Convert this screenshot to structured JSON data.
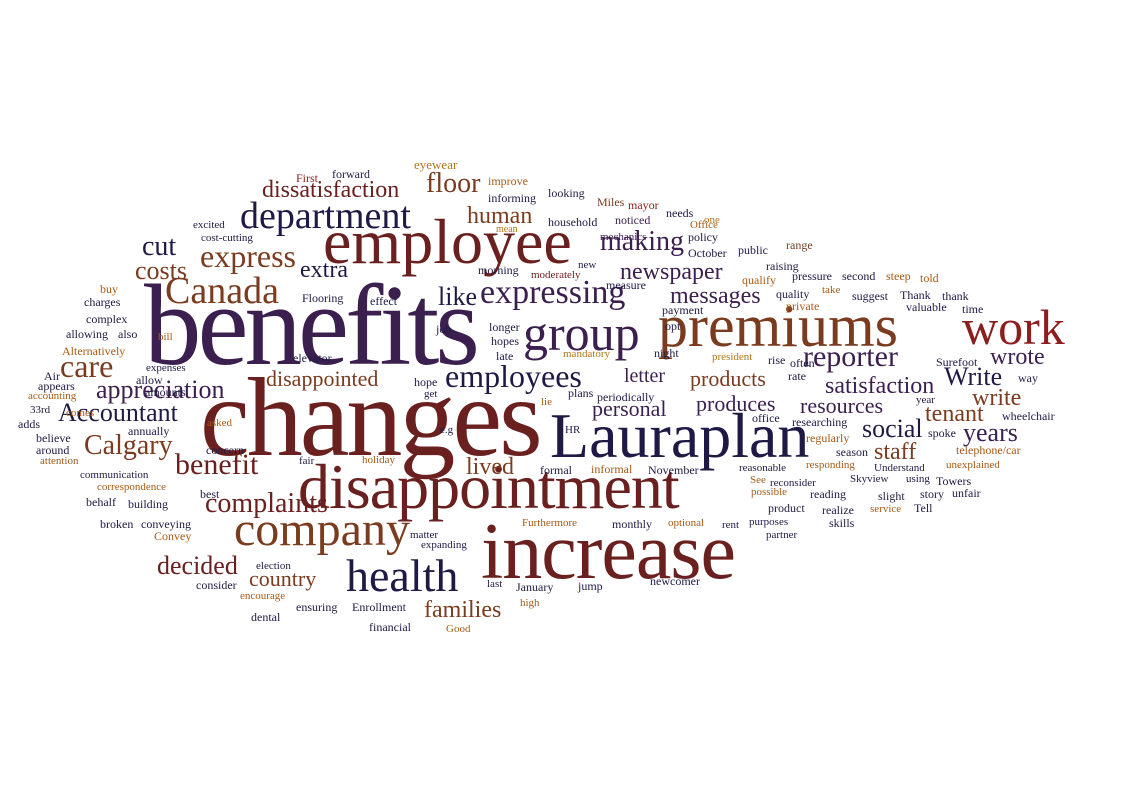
{
  "colors": {
    "navy": "#1f1a45",
    "purple": "#3a1f4f",
    "maroon": "#6b2020",
    "red": "#8b1e1e",
    "brown": "#7a3b1e",
    "orange": "#a65a16",
    "gold": "#b0761c"
  },
  "words": [
    {
      "text": "benefits",
      "color": "purple"
    },
    {
      "text": "changes",
      "color": "maroon"
    },
    {
      "text": "employee",
      "color": "maroon"
    },
    {
      "text": "premiums",
      "color": "brown"
    },
    {
      "text": "work",
      "color": "red"
    },
    {
      "text": "increase",
      "color": "maroon"
    },
    {
      "text": "disappointment",
      "color": "maroon"
    },
    {
      "text": "Lauraplan",
      "color": "navy"
    },
    {
      "text": "group",
      "color": "purple"
    },
    {
      "text": "company",
      "color": "brown"
    },
    {
      "text": "health",
      "color": "navy"
    },
    {
      "text": "department",
      "color": "navy"
    },
    {
      "text": "Canada",
      "color": "brown"
    },
    {
      "text": "expressing",
      "color": "purple"
    },
    {
      "text": "express",
      "color": "brown"
    },
    {
      "text": "reporter",
      "color": "purple"
    },
    {
      "text": "employees",
      "color": "navy"
    },
    {
      "text": "dissatisfaction",
      "color": "maroon"
    },
    {
      "text": "care",
      "color": "brown"
    },
    {
      "text": "cut",
      "color": "navy"
    },
    {
      "text": "costs",
      "color": "brown"
    },
    {
      "text": "benefit",
      "color": "maroon"
    },
    {
      "text": "complaints",
      "color": "maroon"
    },
    {
      "text": "appreciation",
      "color": "purple"
    },
    {
      "text": "Accountant",
      "color": "navy"
    },
    {
      "text": "Calgary",
      "color": "brown"
    },
    {
      "text": "floor",
      "color": "brown"
    },
    {
      "text": "human",
      "color": "brown"
    },
    {
      "text": "making",
      "color": "purple"
    },
    {
      "text": "newspaper",
      "color": "purple"
    },
    {
      "text": "like",
      "color": "navy"
    },
    {
      "text": "extra",
      "color": "navy"
    },
    {
      "text": "messages",
      "color": "purple"
    },
    {
      "text": "disappointed",
      "color": "brown"
    },
    {
      "text": "products",
      "color": "brown"
    },
    {
      "text": "satisfaction",
      "color": "purple"
    },
    {
      "text": "resources",
      "color": "purple"
    },
    {
      "text": "produces",
      "color": "purple"
    },
    {
      "text": "personal",
      "color": "purple"
    },
    {
      "text": "letter",
      "color": "purple"
    },
    {
      "text": "lived",
      "color": "brown"
    },
    {
      "text": "social",
      "color": "navy"
    },
    {
      "text": "staff",
      "color": "brown"
    },
    {
      "text": "tenant",
      "color": "brown"
    },
    {
      "text": "years",
      "color": "purple"
    },
    {
      "text": "write",
      "color": "brown"
    },
    {
      "text": "Write",
      "color": "navy"
    },
    {
      "text": "wrote",
      "color": "purple"
    },
    {
      "text": "decided",
      "color": "maroon"
    },
    {
      "text": "country",
      "color": "brown"
    },
    {
      "text": "families",
      "color": "brown"
    },
    {
      "text": "eyewear",
      "color": "gold"
    },
    {
      "text": "First",
      "color": "red"
    },
    {
      "text": "forward",
      "color": "navy"
    },
    {
      "text": "improve",
      "color": "orange"
    },
    {
      "text": "looking",
      "color": "navy"
    },
    {
      "text": "informing",
      "color": "navy"
    },
    {
      "text": "Miles",
      "color": "brown"
    },
    {
      "text": "mayor",
      "color": "red"
    },
    {
      "text": "household",
      "color": "navy"
    },
    {
      "text": "noticed",
      "color": "purple"
    },
    {
      "text": "needs",
      "color": "navy"
    },
    {
      "text": "one",
      "color": "gold"
    },
    {
      "text": "Office",
      "color": "orange"
    },
    {
      "text": "mean",
      "color": "gold"
    },
    {
      "text": "excited",
      "color": "navy"
    },
    {
      "text": "policy",
      "color": "navy"
    },
    {
      "text": "cost-cutting",
      "color": "navy"
    },
    {
      "text": "mechanics",
      "color": "purple"
    },
    {
      "text": "public",
      "color": "navy"
    },
    {
      "text": "range",
      "color": "brown"
    },
    {
      "text": "October",
      "color": "navy"
    },
    {
      "text": "buy",
      "color": "orange"
    },
    {
      "text": "morning",
      "color": "navy"
    },
    {
      "text": "moderately",
      "color": "maroon"
    },
    {
      "text": "raising",
      "color": "navy"
    },
    {
      "text": "charges",
      "color": "navy"
    },
    {
      "text": "Flooring",
      "color": "navy"
    },
    {
      "text": "effect",
      "color": "navy"
    },
    {
      "text": "new",
      "color": "navy"
    },
    {
      "text": "measure",
      "color": "navy"
    },
    {
      "text": "qualify",
      "color": "orange"
    },
    {
      "text": "take",
      "color": "orange"
    },
    {
      "text": "pressure",
      "color": "navy"
    },
    {
      "text": "second",
      "color": "navy"
    },
    {
      "text": "steep",
      "color": "orange"
    },
    {
      "text": "told",
      "color": "orange"
    },
    {
      "text": "complex",
      "color": "navy"
    },
    {
      "text": "payment",
      "color": "navy"
    },
    {
      "text": "quality",
      "color": "navy"
    },
    {
      "text": "private",
      "color": "orange"
    },
    {
      "text": "suggest",
      "color": "navy"
    },
    {
      "text": "Thank",
      "color": "navy"
    },
    {
      "text": "thank",
      "color": "navy"
    },
    {
      "text": "valuable",
      "color": "navy"
    },
    {
      "text": "time",
      "color": "navy"
    },
    {
      "text": "allowing",
      "color": "navy"
    },
    {
      "text": "also",
      "color": "navy"
    },
    {
      "text": "bill",
      "color": "orange"
    },
    {
      "text": "job",
      "color": "navy"
    },
    {
      "text": "longer",
      "color": "navy"
    },
    {
      "text": "opt",
      "color": "navy"
    },
    {
      "text": "Alternatively",
      "color": "orange"
    },
    {
      "text": "hopes",
      "color": "navy"
    },
    {
      "text": "mandatory",
      "color": "gold"
    },
    {
      "text": "night",
      "color": "navy"
    },
    {
      "text": "president",
      "color": "gold"
    },
    {
      "text": "rise",
      "color": "navy"
    },
    {
      "text": "Surefoot",
      "color": "navy"
    },
    {
      "text": "Air",
      "color": "navy"
    },
    {
      "text": "expenses",
      "color": "navy"
    },
    {
      "text": "late",
      "color": "navy"
    },
    {
      "text": "often",
      "color": "navy"
    },
    {
      "text": "appears",
      "color": "navy"
    },
    {
      "text": "allow",
      "color": "navy"
    },
    {
      "text": "elevator",
      "color": "navy"
    },
    {
      "text": "accounting",
      "color": "orange"
    },
    {
      "text": "amounts",
      "color": "navy"
    },
    {
      "text": "hope",
      "color": "navy"
    },
    {
      "text": "plans",
      "color": "navy"
    },
    {
      "text": "periodically",
      "color": "navy"
    },
    {
      "text": "rate",
      "color": "navy"
    },
    {
      "text": "way",
      "color": "navy"
    },
    {
      "text": "33rd",
      "color": "navy"
    },
    {
      "text": "comes",
      "color": "orange"
    },
    {
      "text": "get",
      "color": "navy"
    },
    {
      "text": "office",
      "color": "navy"
    },
    {
      "text": "year",
      "color": "navy"
    },
    {
      "text": "adds",
      "color": "navy"
    },
    {
      "text": "annually",
      "color": "navy"
    },
    {
      "text": "lie",
      "color": "orange"
    },
    {
      "text": "researching",
      "color": "navy"
    },
    {
      "text": "wheelchair",
      "color": "navy"
    },
    {
      "text": "asked",
      "color": "orange"
    },
    {
      "text": "e.g",
      "color": "navy"
    },
    {
      "text": "HR",
      "color": "navy"
    },
    {
      "text": "regularly",
      "color": "orange"
    },
    {
      "text": "spoke",
      "color": "navy"
    },
    {
      "text": "believe",
      "color": "navy"
    },
    {
      "text": "around",
      "color": "navy"
    },
    {
      "text": "concern",
      "color": "navy"
    },
    {
      "text": "season",
      "color": "navy"
    },
    {
      "text": "attention",
      "color": "orange"
    },
    {
      "text": "fair",
      "color": "navy"
    },
    {
      "text": "holiday",
      "color": "orange"
    },
    {
      "text": "formal",
      "color": "navy"
    },
    {
      "text": "informal",
      "color": "orange"
    },
    {
      "text": "November",
      "color": "navy"
    },
    {
      "text": "reasonable",
      "color": "navy"
    },
    {
      "text": "responding",
      "color": "orange"
    },
    {
      "text": "Understand",
      "color": "navy"
    },
    {
      "text": "unexplained",
      "color": "orange"
    },
    {
      "text": "communication",
      "color": "navy"
    },
    {
      "text": "correspondence",
      "color": "orange"
    },
    {
      "text": "telephone/car",
      "color": "orange"
    },
    {
      "text": "See",
      "color": "orange"
    },
    {
      "text": "reconsider",
      "color": "navy"
    },
    {
      "text": "Skyview",
      "color": "navy"
    },
    {
      "text": "using",
      "color": "navy"
    },
    {
      "text": "Towers",
      "color": "navy"
    },
    {
      "text": "behalf",
      "color": "navy"
    },
    {
      "text": "building",
      "color": "navy"
    },
    {
      "text": "best",
      "color": "navy"
    },
    {
      "text": "possible",
      "color": "orange"
    },
    {
      "text": "reading",
      "color": "navy"
    },
    {
      "text": "slight",
      "color": "navy"
    },
    {
      "text": "story",
      "color": "navy"
    },
    {
      "text": "unfair",
      "color": "navy"
    },
    {
      "text": "product",
      "color": "navy"
    },
    {
      "text": "realize",
      "color": "navy"
    },
    {
      "text": "service",
      "color": "orange"
    },
    {
      "text": "Tell",
      "color": "navy"
    },
    {
      "text": "broken",
      "color": "navy"
    },
    {
      "text": "conveying",
      "color": "navy"
    },
    {
      "text": "Furthermore",
      "color": "orange"
    },
    {
      "text": "monthly",
      "color": "navy"
    },
    {
      "text": "optional",
      "color": "orange"
    },
    {
      "text": "rent",
      "color": "navy"
    },
    {
      "text": "purposes",
      "color": "navy"
    },
    {
      "text": "skills",
      "color": "navy"
    },
    {
      "text": "Convey",
      "color": "orange"
    },
    {
      "text": "matter",
      "color": "navy"
    },
    {
      "text": "partner",
      "color": "navy"
    },
    {
      "text": "expanding",
      "color": "navy"
    },
    {
      "text": "election",
      "color": "navy"
    },
    {
      "text": "consider",
      "color": "navy"
    },
    {
      "text": "encourage",
      "color": "orange"
    },
    {
      "text": "last",
      "color": "navy"
    },
    {
      "text": "January",
      "color": "navy"
    },
    {
      "text": "jump",
      "color": "navy"
    },
    {
      "text": "newcomer",
      "color": "navy"
    },
    {
      "text": "ensuring",
      "color": "navy"
    },
    {
      "text": "Enrollment",
      "color": "navy"
    },
    {
      "text": "high",
      "color": "orange"
    },
    {
      "text": "dental",
      "color": "navy"
    },
    {
      "text": "financial",
      "color": "navy"
    },
    {
      "text": "Good",
      "color": "orange"
    }
  ]
}
